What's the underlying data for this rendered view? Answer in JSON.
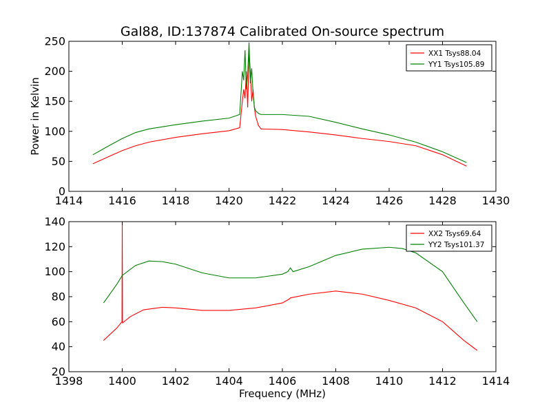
{
  "chart_data": [
    {
      "type": "line",
      "title": "Gal88, ID:137874 Calibrated On-source spectrum",
      "xlabel": "",
      "ylabel": "Power in Kelvin",
      "xlim": [
        1414,
        1430
      ],
      "ylim": [
        0,
        250
      ],
      "xticks": [
        1414,
        1416,
        1418,
        1420,
        1422,
        1424,
        1426,
        1428,
        1430
      ],
      "yticks": [
        0,
        50,
        100,
        150,
        200,
        250
      ],
      "grid": false,
      "legend_position": "top-right",
      "series": [
        {
          "name": "XX1 Tsys88.04",
          "color": "#ff0000",
          "x": [
            1414.9,
            1415.5,
            1416,
            1416.5,
            1417,
            1418,
            1419,
            1420,
            1420.4,
            1420.5,
            1420.55,
            1420.6,
            1420.65,
            1420.7,
            1420.75,
            1420.8,
            1420.85,
            1420.9,
            1420.95,
            1421.0,
            1421.1,
            1421.2,
            1422,
            1423,
            1424,
            1425,
            1426,
            1427,
            1428,
            1428.9
          ],
          "y": [
            46,
            58,
            68,
            76,
            82,
            90,
            96,
            101,
            106,
            150,
            170,
            155,
            200,
            140,
            230,
            200,
            150,
            170,
            140,
            125,
            110,
            104,
            103,
            99,
            94,
            88,
            83,
            76,
            61,
            42
          ]
        },
        {
          "name": "YY1 Tsys105.89",
          "color": "#008000",
          "x": [
            1414.9,
            1415.5,
            1416,
            1416.5,
            1417,
            1418,
            1419,
            1420,
            1420.4,
            1420.5,
            1420.55,
            1420.6,
            1420.65,
            1420.7,
            1420.75,
            1420.8,
            1420.85,
            1420.9,
            1420.95,
            1421.0,
            1421.1,
            1421.2,
            1422,
            1423,
            1424,
            1425,
            1426,
            1427,
            1428,
            1428.9
          ],
          "y": [
            61,
            76,
            88,
            98,
            104,
            111,
            117,
            122,
            128,
            200,
            185,
            235,
            170,
            195,
            248,
            180,
            205,
            165,
            140,
            134,
            130,
            128,
            128,
            125,
            115,
            104,
            94,
            82,
            66,
            48
          ]
        }
      ]
    },
    {
      "type": "line",
      "title": "",
      "xlabel": "Frequency (MHz)",
      "ylabel": "",
      "xlim": [
        1398,
        1414
      ],
      "ylim": [
        20,
        140
      ],
      "xticks": [
        1398,
        1400,
        1402,
        1404,
        1406,
        1408,
        1410,
        1412,
        1414
      ],
      "yticks": [
        20,
        40,
        60,
        80,
        100,
        120,
        140
      ],
      "grid": false,
      "legend_position": "top-right",
      "series": [
        {
          "name": "XX2 Tsys69.64",
          "color": "#ff0000",
          "x": [
            1399.3,
            1399.8,
            1399.99,
            1400.0,
            1400.01,
            1400.3,
            1400.8,
            1401.5,
            1402,
            1403,
            1404,
            1405,
            1406,
            1406.25,
            1406.3,
            1407,
            1408,
            1409,
            1410,
            1411,
            1412,
            1412.8,
            1413.3
          ],
          "y": [
            45,
            55,
            60,
            140,
            59,
            64,
            69.5,
            71.5,
            71,
            69,
            69,
            71,
            75,
            78,
            79,
            82,
            84.5,
            82,
            77,
            71,
            60,
            45,
            37
          ]
        },
        {
          "name": "YY2 Tsys101.37",
          "color": "#008000",
          "x": [
            1399.3,
            1399.8,
            1400,
            1400.5,
            1401,
            1401.5,
            1402,
            1403,
            1404,
            1405,
            1406,
            1406.2,
            1406.3,
            1406.4,
            1407,
            1408,
            1409,
            1410,
            1410.5,
            1411,
            1412,
            1412.8,
            1413.3
          ],
          "y": [
            75,
            90,
            97,
            105,
            108.5,
            108,
            106,
            99,
            95,
            95,
            98,
            100,
            103,
            100,
            104,
            113,
            118,
            119.5,
            118.5,
            115,
            100,
            75,
            60
          ]
        }
      ]
    }
  ]
}
